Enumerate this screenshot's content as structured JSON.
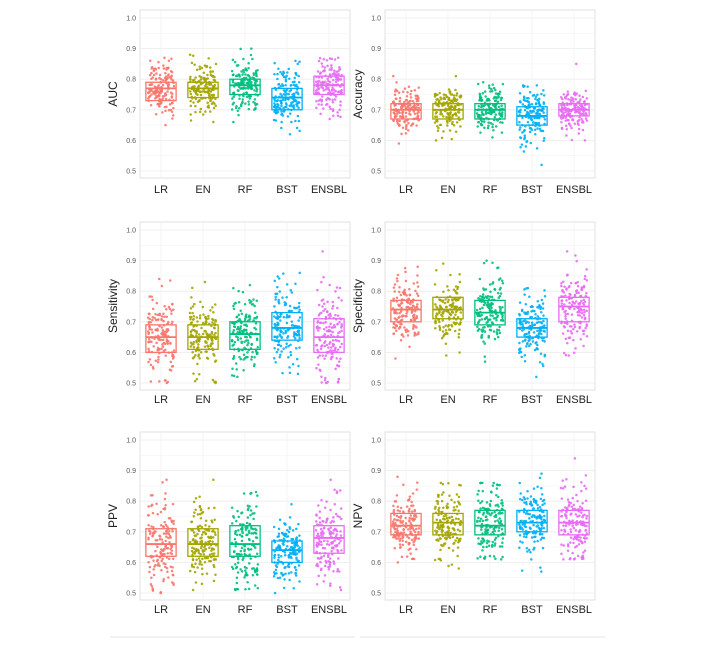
{
  "chart_data": [
    {
      "type": "box",
      "ylabel": "AUC",
      "ylim": [
        0.5,
        1.0
      ],
      "yticks": [
        "0.5",
        "0.6",
        "0.7",
        "0.8",
        "0.9",
        "1.0"
      ],
      "categories": [
        "LR",
        "EN",
        "RF",
        "BST",
        "ENSBL"
      ],
      "boxes": [
        {
          "category": "LR",
          "q1": 0.73,
          "median": 0.77,
          "q3": 0.79,
          "min": 0.65,
          "max": 0.87
        },
        {
          "category": "EN",
          "q1": 0.74,
          "median": 0.77,
          "q3": 0.79,
          "min": 0.66,
          "max": 0.88
        },
        {
          "category": "RF",
          "q1": 0.75,
          "median": 0.78,
          "q3": 0.8,
          "min": 0.66,
          "max": 0.9
        },
        {
          "category": "BST",
          "q1": 0.7,
          "median": 0.74,
          "q3": 0.77,
          "min": 0.62,
          "max": 0.86
        },
        {
          "category": "ENSBL",
          "q1": 0.75,
          "median": 0.78,
          "q3": 0.81,
          "min": 0.67,
          "max": 0.87
        }
      ]
    },
    {
      "type": "box",
      "ylabel": "Accuracy",
      "ylim": [
        0.5,
        1.0
      ],
      "yticks": [
        "0.5",
        "0.6",
        "0.7",
        "0.8",
        "0.9",
        "1.0"
      ],
      "categories": [
        "LR",
        "EN",
        "RF",
        "BST",
        "ENSBL"
      ],
      "boxes": [
        {
          "category": "LR",
          "q1": 0.67,
          "median": 0.7,
          "q3": 0.72,
          "min": 0.59,
          "max": 0.81
        },
        {
          "category": "EN",
          "q1": 0.67,
          "median": 0.7,
          "q3": 0.72,
          "min": 0.6,
          "max": 0.81
        },
        {
          "category": "RF",
          "q1": 0.67,
          "median": 0.7,
          "q3": 0.72,
          "min": 0.61,
          "max": 0.79
        },
        {
          "category": "BST",
          "q1": 0.65,
          "median": 0.68,
          "q3": 0.71,
          "min": 0.52,
          "max": 0.78
        },
        {
          "category": "ENSBL",
          "q1": 0.68,
          "median": 0.7,
          "q3": 0.72,
          "min": 0.6,
          "max": 0.85
        }
      ]
    },
    {
      "type": "box",
      "ylabel": "Sensitivity",
      "ylim": [
        0.5,
        1.0
      ],
      "yticks": [
        "0.5",
        "0.6",
        "0.7",
        "0.8",
        "0.9",
        "1.0"
      ],
      "categories": [
        "LR",
        "EN",
        "RF",
        "BST",
        "ENSBL"
      ],
      "boxes": [
        {
          "category": "LR",
          "q1": 0.6,
          "median": 0.65,
          "q3": 0.69,
          "min": 0.5,
          "max": 0.84
        },
        {
          "category": "EN",
          "q1": 0.61,
          "median": 0.65,
          "q3": 0.69,
          "min": 0.5,
          "max": 0.83
        },
        {
          "category": "RF",
          "q1": 0.61,
          "median": 0.66,
          "q3": 0.7,
          "min": 0.52,
          "max": 0.82
        },
        {
          "category": "BST",
          "q1": 0.64,
          "median": 0.68,
          "q3": 0.73,
          "min": 0.53,
          "max": 0.86
        },
        {
          "category": "ENSBL",
          "q1": 0.6,
          "median": 0.65,
          "q3": 0.71,
          "min": 0.5,
          "max": 0.93
        }
      ]
    },
    {
      "type": "box",
      "ylabel": "Specificity",
      "ylim": [
        0.5,
        1.0
      ],
      "yticks": [
        "0.5",
        "0.6",
        "0.7",
        "0.8",
        "0.9",
        "1.0"
      ],
      "categories": [
        "LR",
        "EN",
        "RF",
        "BST",
        "ENSBL"
      ],
      "boxes": [
        {
          "category": "LR",
          "q1": 0.7,
          "median": 0.74,
          "q3": 0.77,
          "min": 0.58,
          "max": 0.88
        },
        {
          "category": "EN",
          "q1": 0.71,
          "median": 0.74,
          "q3": 0.78,
          "min": 0.59,
          "max": 0.89
        },
        {
          "category": "RF",
          "q1": 0.69,
          "median": 0.73,
          "q3": 0.77,
          "min": 0.57,
          "max": 0.9
        },
        {
          "category": "BST",
          "q1": 0.65,
          "median": 0.68,
          "q3": 0.71,
          "min": 0.52,
          "max": 0.81
        },
        {
          "category": "ENSBL",
          "q1": 0.7,
          "median": 0.75,
          "q3": 0.78,
          "min": 0.59,
          "max": 0.93
        }
      ]
    },
    {
      "type": "box",
      "ylabel": "PPV",
      "ylim": [
        0.5,
        1.0
      ],
      "yticks": [
        "0.5",
        "0.6",
        "0.7",
        "0.8",
        "0.9",
        "1.0"
      ],
      "categories": [
        "LR",
        "EN",
        "RF",
        "BST",
        "ENSBL"
      ],
      "boxes": [
        {
          "category": "LR",
          "q1": 0.62,
          "median": 0.66,
          "q3": 0.71,
          "min": 0.5,
          "max": 0.87
        },
        {
          "category": "EN",
          "q1": 0.62,
          "median": 0.66,
          "q3": 0.71,
          "min": 0.51,
          "max": 0.87
        },
        {
          "category": "RF",
          "q1": 0.62,
          "median": 0.66,
          "q3": 0.72,
          "min": 0.51,
          "max": 0.83
        },
        {
          "category": "BST",
          "q1": 0.6,
          "median": 0.64,
          "q3": 0.67,
          "min": 0.5,
          "max": 0.79
        },
        {
          "category": "ENSBL",
          "q1": 0.63,
          "median": 0.68,
          "q3": 0.72,
          "min": 0.51,
          "max": 0.87
        }
      ]
    },
    {
      "type": "box",
      "ylabel": "NPV",
      "ylim": [
        0.5,
        1.0
      ],
      "yticks": [
        "0.5",
        "0.6",
        "0.7",
        "0.8",
        "0.9",
        "1.0"
      ],
      "categories": [
        "LR",
        "EN",
        "RF",
        "BST",
        "ENSBL"
      ],
      "boxes": [
        {
          "category": "LR",
          "q1": 0.69,
          "median": 0.72,
          "q3": 0.76,
          "min": 0.6,
          "max": 0.88
        },
        {
          "category": "EN",
          "q1": 0.69,
          "median": 0.73,
          "q3": 0.76,
          "min": 0.58,
          "max": 0.86
        },
        {
          "category": "RF",
          "q1": 0.69,
          "median": 0.72,
          "q3": 0.77,
          "min": 0.61,
          "max": 0.86
        },
        {
          "category": "BST",
          "q1": 0.7,
          "median": 0.73,
          "q3": 0.77,
          "min": 0.57,
          "max": 0.89
        },
        {
          "category": "ENSBL",
          "q1": 0.69,
          "median": 0.73,
          "q3": 0.77,
          "min": 0.61,
          "max": 0.94
        }
      ]
    }
  ],
  "colors": {
    "LR": "#F8766D",
    "EN": "#A3A500",
    "RF": "#00BF7D",
    "BST": "#00B0F6",
    "ENSBL": "#E76BF3"
  }
}
